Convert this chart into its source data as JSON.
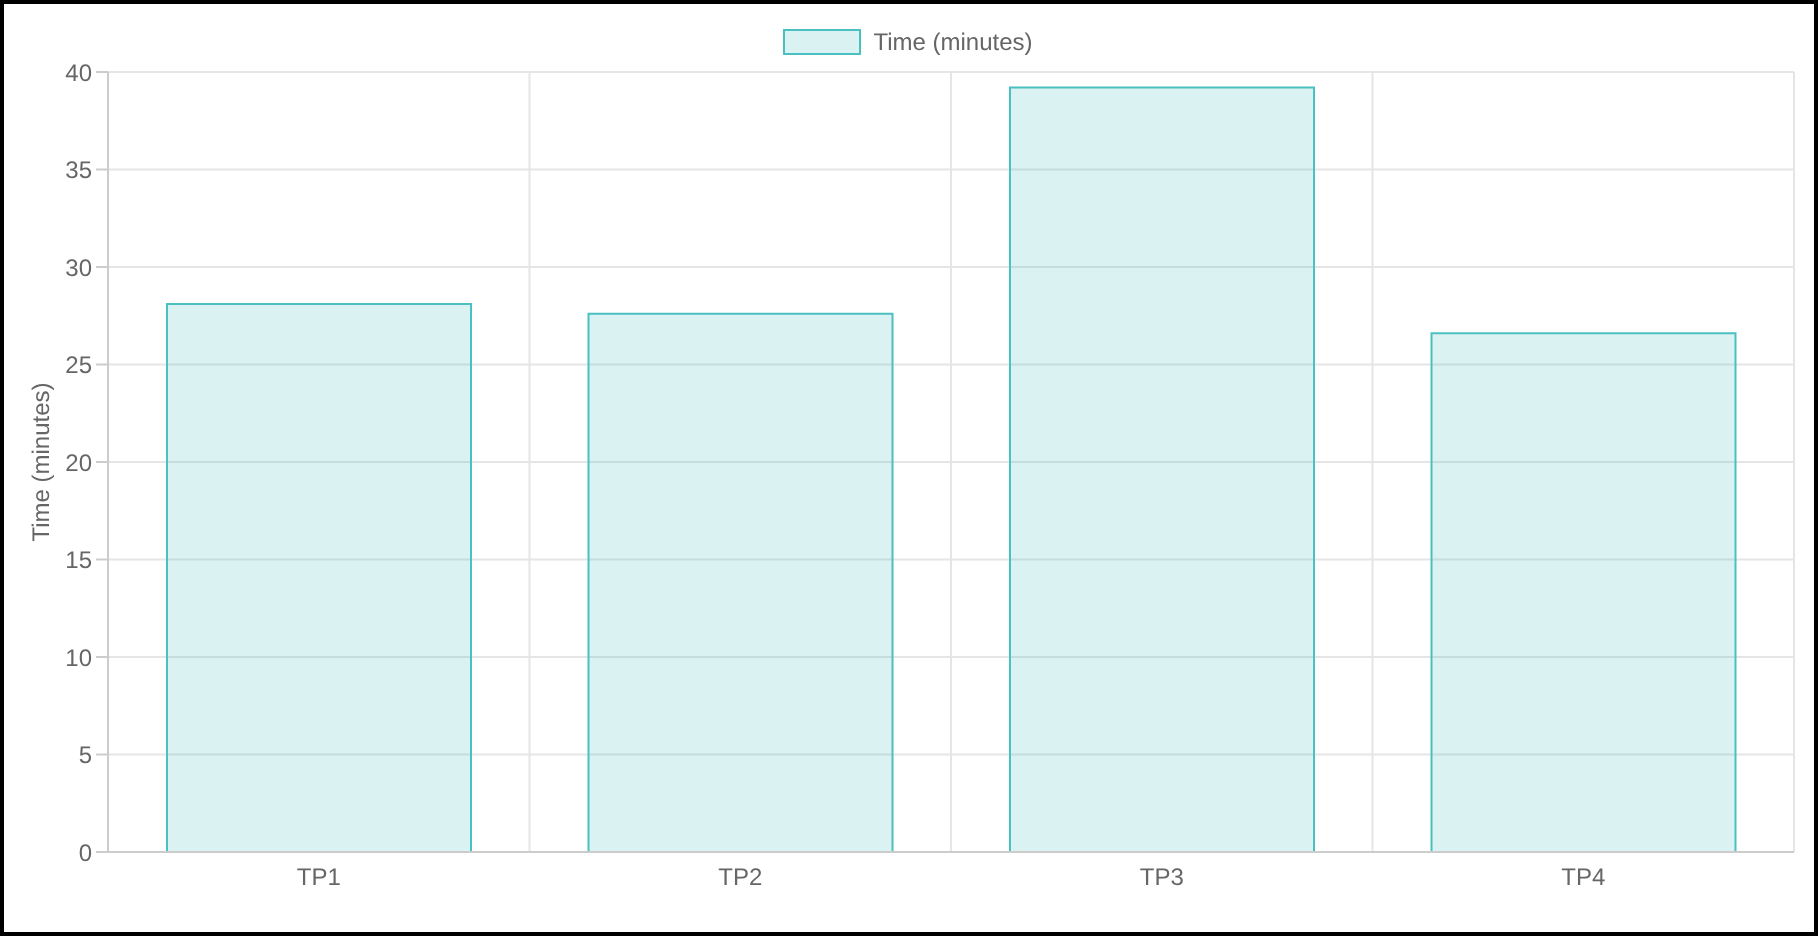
{
  "chart_data": {
    "type": "bar",
    "ylabel": "Time (minutes)",
    "categories": [
      "TP1",
      "TP2",
      "TP3",
      "TP4"
    ],
    "series": [
      {
        "name": "Time (minutes)",
        "color": "#4bc0c0",
        "values": [
          28.1,
          27.6,
          39.2,
          26.6
        ]
      }
    ],
    "ylim": [
      0,
      40
    ],
    "yticks": [
      0,
      5,
      10,
      15,
      20,
      25,
      30,
      35,
      40
    ],
    "grid": true,
    "legend": "top"
  }
}
